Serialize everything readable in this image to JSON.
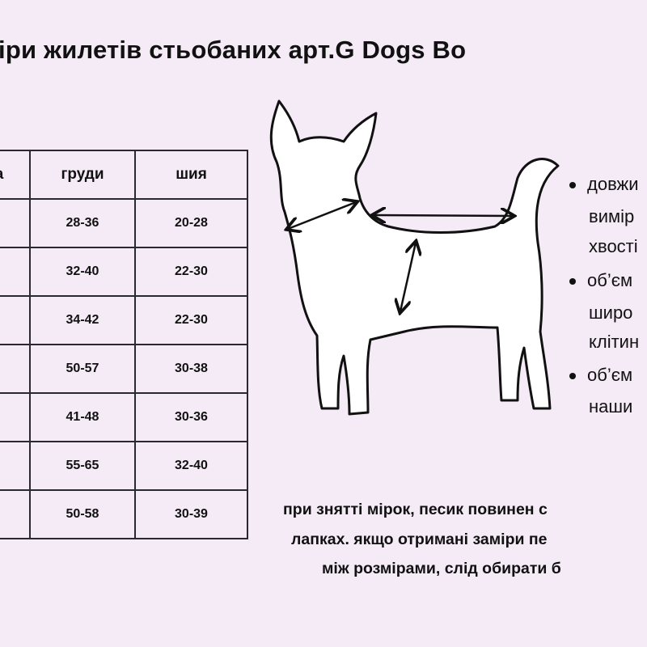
{
  "title": "іри жилетів стьобаних арт.G Dogs Bo",
  "table": {
    "headers": [
      "а",
      "груди",
      "шия"
    ],
    "rows": [
      [
        "",
        "28-36",
        "20-28"
      ],
      [
        "",
        "32-40",
        "22-30"
      ],
      [
        "",
        "34-42",
        "22-30"
      ],
      [
        "",
        "50-57",
        "30-38"
      ],
      [
        "",
        "41-48",
        "30-36"
      ],
      [
        "",
        "55-65",
        "32-40"
      ],
      [
        "",
        "50-58",
        "30-39"
      ]
    ]
  },
  "bullets": [
    {
      "lines": [
        "довжи",
        "вимір",
        "хвості"
      ]
    },
    {
      "lines": [
        "об’єм",
        "широ",
        "клітин"
      ]
    },
    {
      "lines": [
        "об’єм",
        "наши"
      ]
    }
  ],
  "note": {
    "lines": [
      "при знятті мірок, песик повинен с",
      "лапках. якщо отримані заміри пе",
      "між розмірами, слід обирати б"
    ]
  },
  "colors": {
    "background": "#f4ebf6",
    "text": "#111111"
  },
  "illustration": "dog-silhouette-with-measurement-arrows"
}
